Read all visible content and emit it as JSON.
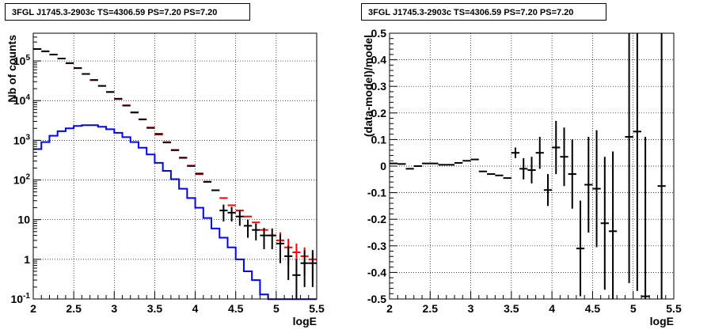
{
  "chart_data": [
    {
      "type": "histogram",
      "title": "3FGL J1745.3-2903c TS=4306.59 PS=7.20 PS=7.20",
      "xlabel": "logE",
      "ylabel": "Nb of counts",
      "xlim": [
        2,
        5.5
      ],
      "ylim": [
        0.1,
        500000
      ],
      "y_scale": "log",
      "grid": true,
      "x_ticks": [
        "2",
        "2.5",
        "3",
        "3.5",
        "4",
        "4.5",
        "5",
        "5.5"
      ],
      "y_ticks": [
        {
          "v": 0.1,
          "base": "10",
          "exp": "-1",
          "label": ""
        },
        {
          "v": 1,
          "base": "",
          "exp": "",
          "label": "1"
        },
        {
          "v": 10,
          "base": "",
          "exp": "",
          "label": "10"
        },
        {
          "v": 100,
          "base": "10",
          "exp": "2",
          "label": ""
        },
        {
          "v": 1000,
          "base": "10",
          "exp": "3",
          "label": ""
        },
        {
          "v": 10000,
          "base": "10",
          "exp": "4",
          "label": ""
        },
        {
          "v": 100000,
          "base": "10",
          "exp": "5",
          "label": ""
        }
      ],
      "bin_edges": [
        2.0,
        2.1,
        2.2,
        2.3,
        2.4,
        2.5,
        2.6,
        2.7,
        2.8,
        2.9,
        3.0,
        3.1,
        3.2,
        3.3,
        3.4,
        3.5,
        3.6,
        3.7,
        3.8,
        3.9,
        4.0,
        4.1,
        4.2,
        4.3,
        4.4,
        4.5,
        4.6,
        4.7,
        4.8,
        4.9,
        5.0,
        5.1,
        5.2,
        5.3,
        5.4,
        5.5
      ],
      "series": [
        {
          "name": "",
          "kind": "step",
          "color": "#0000ff",
          "values": [
            600,
            900,
            1300,
            1700,
            2000,
            2300,
            2400,
            2400,
            2200,
            1900,
            1550,
            1200,
            900,
            650,
            440,
            270,
            170,
            105,
            60,
            35,
            20,
            11,
            6,
            3.5,
            2,
            1,
            0.5,
            0.3,
            0.13,
            0.09,
            0.09,
            0.09,
            0.09,
            0.09,
            0.09
          ]
        },
        {
          "name": "",
          "kind": "errorbar",
          "color": "#ff0000",
          "x": [
            2.05,
            2.15,
            2.25,
            2.35,
            2.45,
            2.55,
            2.65,
            2.75,
            2.85,
            2.95,
            3.05,
            3.15,
            3.25,
            3.35,
            3.45,
            3.55,
            3.65,
            3.75,
            3.85,
            3.95,
            4.05,
            4.15,
            4.25,
            4.35,
            4.45,
            4.55,
            4.65,
            4.75,
            4.85,
            4.95,
            5.05,
            5.15,
            5.25,
            5.35,
            5.45
          ],
          "y": [
            200000,
            175000,
            145000,
            115000,
            88000,
            66000,
            47000,
            33000,
            23500,
            16500,
            11200,
            7600,
            5100,
            3400,
            2100,
            1400,
            900,
            560,
            360,
            230,
            140,
            90,
            55,
            35,
            23,
            17,
            12,
            8.5,
            5.5,
            4,
            3,
            2,
            1.5,
            1.2,
            1
          ],
          "yerr_low": [
            0,
            0,
            0,
            0,
            0,
            0,
            0,
            0,
            0,
            0,
            0,
            0,
            0,
            0,
            0,
            0,
            0,
            0,
            0,
            0,
            0,
            0,
            0,
            0,
            0,
            0,
            0,
            0,
            0,
            0,
            1.8,
            1.3,
            1.0,
            0.8,
            0.7
          ],
          "yerr_high": [
            0,
            0,
            0,
            0,
            0,
            0,
            0,
            0,
            0,
            0,
            0,
            0,
            0,
            0,
            0,
            0,
            0,
            0,
            0,
            0,
            0,
            0,
            0,
            0,
            0,
            0,
            0,
            0,
            0,
            0,
            1.8,
            1.3,
            1.0,
            0.8,
            0.7
          ]
        },
        {
          "name": "",
          "kind": "errorbar",
          "color": "#000000",
          "x": [
            2.05,
            2.15,
            2.25,
            2.35,
            2.45,
            2.55,
            2.65,
            2.75,
            2.85,
            2.95,
            3.05,
            3.15,
            3.25,
            3.35,
            3.45,
            3.55,
            3.65,
            3.75,
            3.85,
            3.95,
            4.05,
            4.15,
            4.25,
            4.35,
            4.45,
            4.55,
            4.65,
            4.75,
            4.85,
            4.95,
            5.05,
            5.15,
            5.25,
            5.35,
            5.45
          ],
          "y": [
            200000,
            175000,
            145000,
            115000,
            88000,
            66000,
            47000,
            33000,
            23500,
            16500,
            11000,
            7500,
            5000,
            3350,
            2050,
            1450,
            880,
            570,
            365,
            225,
            145,
            90,
            55,
            17,
            15,
            12,
            7,
            5.5,
            4,
            4,
            2.5,
            1.2,
            0.4,
            0.8,
            0.8
          ],
          "yerr_low": [
            0,
            0,
            0,
            0,
            0,
            0,
            0,
            0,
            0,
            0,
            0,
            0,
            0,
            0,
            0,
            0,
            0,
            0,
            0,
            0,
            0,
            0,
            0,
            8,
            6,
            5,
            3.5,
            2.5,
            2.2,
            2.2,
            1.7,
            0.9,
            0.35,
            0.6,
            0.6
          ],
          "yerr_high": [
            0,
            0,
            0,
            0,
            0,
            0,
            0,
            0,
            0,
            0,
            0,
            0,
            0,
            0,
            0,
            0,
            0,
            0,
            0,
            0,
            0,
            0,
            0,
            7,
            6,
            5,
            3,
            2.5,
            2.2,
            2,
            1.7,
            1.0,
            0.6,
            0.9,
            0.9
          ]
        }
      ]
    },
    {
      "type": "scatter",
      "title": "3FGL J1745.3-2903c TS=4306.59 PS=7.20 PS=7.20",
      "xlabel": "logE",
      "ylabel": "(data-model)/model",
      "xlim": [
        2,
        5.5
      ],
      "ylim": [
        -0.5,
        0.5
      ],
      "grid": true,
      "x_ticks": [
        "2",
        "2.5",
        "3",
        "3.5",
        "4",
        "4.5",
        "5",
        "5.5"
      ],
      "y_ticks": [
        "-0.5",
        "-0.4",
        "-0.3",
        "-0.2",
        "-0.1",
        "0",
        "0.1",
        "0.2",
        "0.3",
        "0.4",
        "0.5"
      ],
      "series": [
        {
          "name": "",
          "color": "#000000",
          "x": [
            2.05,
            2.15,
            2.25,
            2.35,
            2.45,
            2.55,
            2.65,
            2.75,
            2.85,
            2.95,
            3.05,
            3.15,
            3.25,
            3.35,
            3.45,
            3.55,
            3.65,
            3.75,
            3.85,
            3.95,
            4.05,
            4.15,
            4.25,
            4.35,
            4.45,
            4.55,
            4.65,
            4.75,
            4.85,
            4.95,
            5.05,
            5.15,
            5.25,
            5.35,
            5.45
          ],
          "y": [
            0.01,
            0.008,
            -0.01,
            0.0,
            0.01,
            0.01,
            0.005,
            0.005,
            0.012,
            0.02,
            0.025,
            -0.02,
            -0.03,
            -0.035,
            -0.045,
            0.05,
            -0.01,
            -0.015,
            0.05,
            -0.09,
            0.07,
            0.035,
            -0.03,
            -0.31,
            -0.07,
            -0.085,
            -0.215,
            -0.245,
            null,
            0.11,
            0.13,
            -0.49,
            null,
            -0.075,
            null
          ],
          "yerr": [
            0,
            0,
            0,
            0,
            0,
            0,
            0,
            0,
            0,
            0,
            0,
            0,
            0,
            0,
            0,
            0.02,
            0.04,
            0.05,
            0.06,
            0.06,
            0.1,
            0.11,
            0.13,
            0.18,
            0.18,
            0.22,
            0.25,
            0.3,
            0,
            0.55,
            0.6,
            0.6,
            0,
            0.8,
            0
          ]
        }
      ]
    }
  ]
}
